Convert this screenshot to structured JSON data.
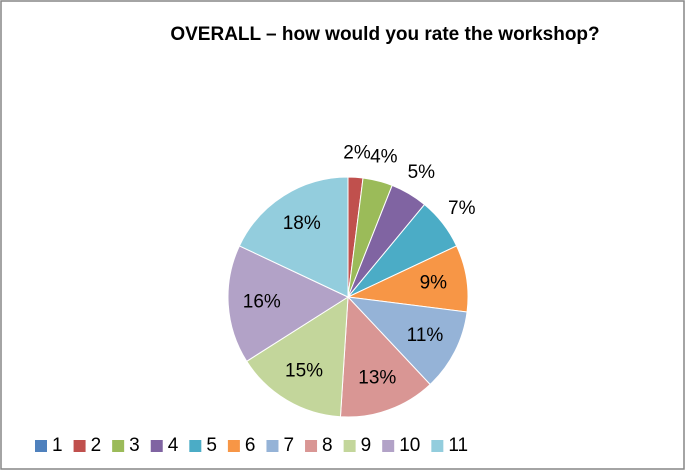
{
  "chart_data": {
    "type": "pie",
    "title": "OVERALL – how would you rate the workshop?",
    "categories": [
      "1",
      "2",
      "3",
      "4",
      "5",
      "6",
      "7",
      "8",
      "9",
      "10",
      "11"
    ],
    "values": [
      0,
      2,
      4,
      5,
      7,
      9,
      11,
      13,
      15,
      16,
      18
    ],
    "value_labels": [
      null,
      "2%",
      "4%",
      "5%",
      "7%",
      "9%",
      "11%",
      "13%",
      "15%",
      "16%",
      "18%"
    ],
    "colors": [
      "#4F81BD",
      "#C0504D",
      "#9BBB59",
      "#8064A2",
      "#4BACC6",
      "#F79646",
      "#95B3D7",
      "#D99694",
      "#C3D69B",
      "#B2A2C7",
      "#93CDDD"
    ],
    "legend": "bottom"
  }
}
